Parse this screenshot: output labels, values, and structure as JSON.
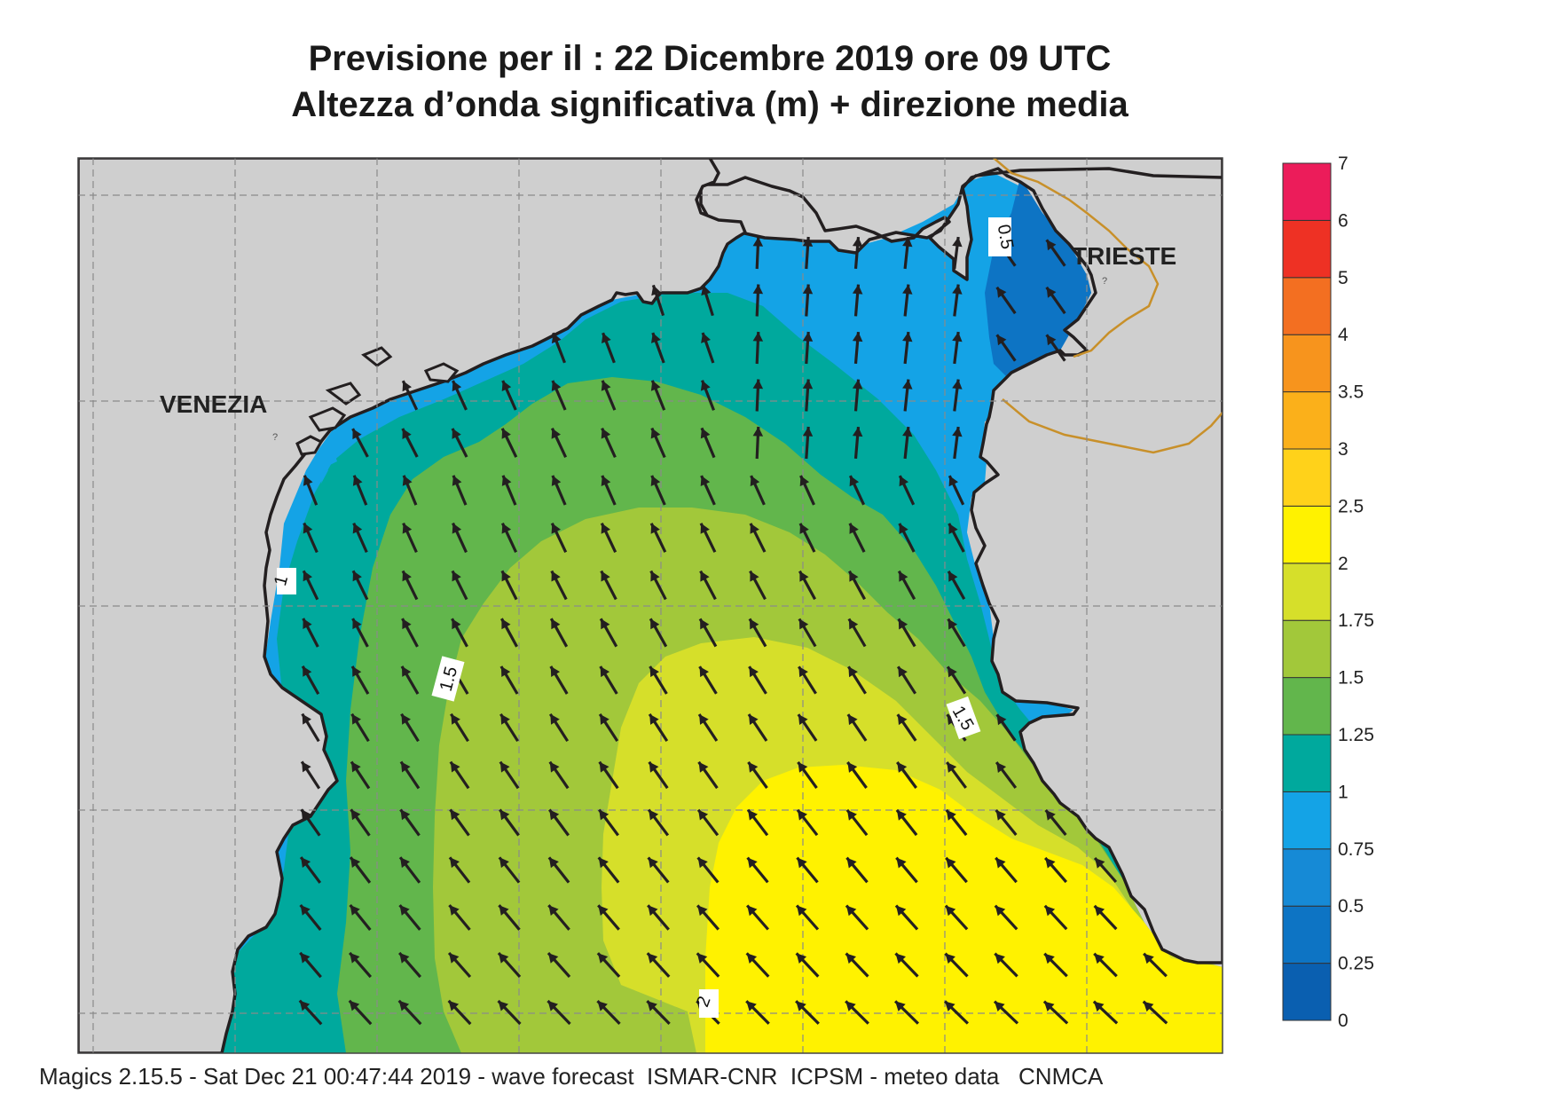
{
  "title": {
    "line1": "Previsione per il  :  22 Dicembre  2019    ore 09 UTC",
    "line2": "Altezza d’onda significativa (m) + direzione media"
  },
  "cities": {
    "venezia": "VENEZIA",
    "trieste": "TRIESTE"
  },
  "contour_labels": [
    "0.5",
    "1",
    "1.5",
    "1.5",
    "2"
  ],
  "legend": {
    "ticks": [
      "0",
      "0.25",
      "0.5",
      "0.75",
      "1",
      "1.25",
      "1.5",
      "1.75",
      "2",
      "2.5",
      "3",
      "3.5",
      "4",
      "5",
      "6",
      "7"
    ],
    "colors": [
      "#0a5fb0",
      "#0d74c4",
      "#168ad6",
      "#14a3e6",
      "#00a99d",
      "#62b64c",
      "#a2c83a",
      "#d6df2a",
      "#fff200",
      "#ffd21a",
      "#fbb01a",
      "#f7941d",
      "#f36f21",
      "#ee3124",
      "#ec1c5a"
    ]
  },
  "colors": {
    "land": "#cfcfcf",
    "coast": "#231f20",
    "border": "#c8902a",
    "arrow": "#231f20"
  },
  "footer": "Magics 2.15.5 - Sat Dec 21 00:47:44 2019 - wave forecast  ISMAR-CNR  ICPSM - meteo data   CNMCA"
}
